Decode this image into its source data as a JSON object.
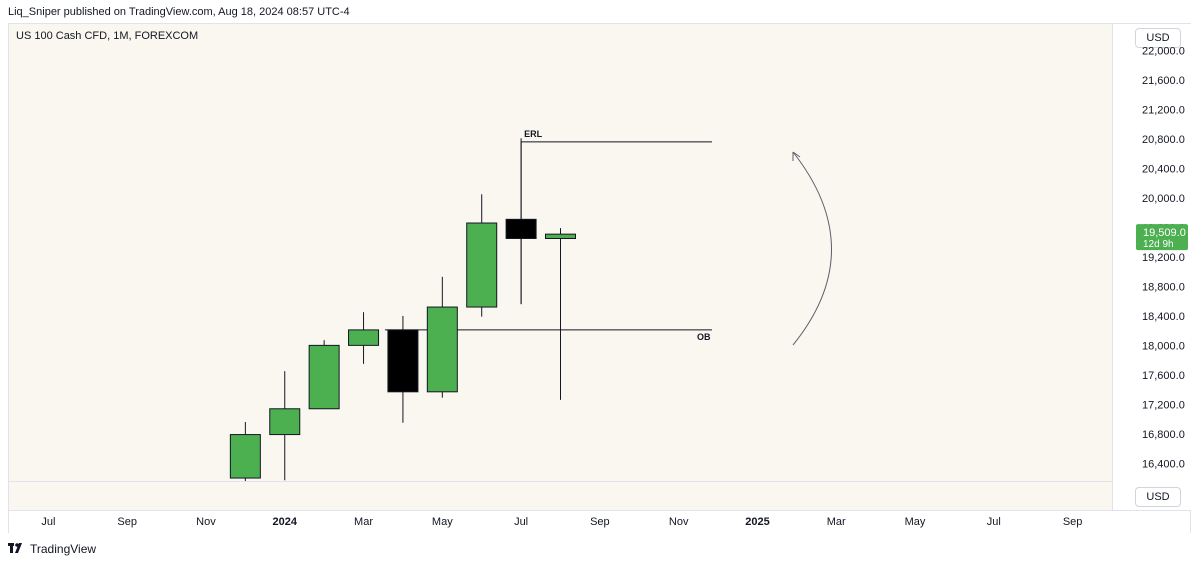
{
  "header": {
    "published": "Liq_Sniper published on TradingView.com, Aug 18, 2024 08:57 UTC-4"
  },
  "symbol": "US 100 Cash CFD, 1M, FOREXCOM",
  "currency_top": "USD",
  "currency_bottom": "USD",
  "footer": {
    "brand": "TradingView",
    "logo_icon": "tradingview-logo-icon"
  },
  "colors": {
    "bull": "#4caf50",
    "bear": "#000000",
    "background": "#faf7f0",
    "price_label": "#4caf50"
  },
  "chart_data": {
    "type": "candlestick",
    "title": "US 100 Cash CFD, 1M, FOREXCOM",
    "ylim": [
      16160,
      22360
    ],
    "xlim": [
      "2023-06",
      "2025-10"
    ],
    "x_ticks": [
      "Jul",
      "Sep",
      "Nov",
      "2024",
      "Mar",
      "May",
      "Jul",
      "Sep",
      "Nov",
      "2025",
      "Mar",
      "May",
      "Jul",
      "Sep"
    ],
    "y_ticks": [
      "16,400.0",
      "16,800.0",
      "17,200.0",
      "17,600.0",
      "18,000.0",
      "18,400.0",
      "18,800.0",
      "19,200.0",
      "19,600.0",
      "20,000.0",
      "20,400.0",
      "20,800.0",
      "21,200.0",
      "21,600.0",
      "22,000.0"
    ],
    "candles": [
      {
        "month": "2023-12",
        "open": 16200,
        "high": 16960,
        "low": 16160,
        "close": 16790
      },
      {
        "month": "2024-01",
        "open": 16790,
        "high": 17650,
        "low": 16170,
        "close": 17140
      },
      {
        "month": "2024-02",
        "open": 17140,
        "high": 18070,
        "low": 17140,
        "close": 18000
      },
      {
        "month": "2024-03",
        "open": 18000,
        "high": 18450,
        "low": 17750,
        "close": 18210
      },
      {
        "month": "2024-04",
        "open": 18210,
        "high": 18400,
        "low": 16950,
        "close": 17370
      },
      {
        "month": "2024-05",
        "open": 17370,
        "high": 18930,
        "low": 17290,
        "close": 18520
      },
      {
        "month": "2024-06",
        "open": 18520,
        "high": 20050,
        "low": 18390,
        "close": 19660
      },
      {
        "month": "2024-07",
        "open": 19710,
        "high": 20810,
        "low": 18560,
        "close": 19450
      },
      {
        "month": "2024-08",
        "open": 19450,
        "high": 19590,
        "low": 17260,
        "close": 19509
      }
    ],
    "last_price": "19,509.0",
    "countdown": "12d 9h",
    "annotations": [
      {
        "label": "ERL",
        "price": 20760
      },
      {
        "label": "OB",
        "price": 18210
      }
    ]
  }
}
